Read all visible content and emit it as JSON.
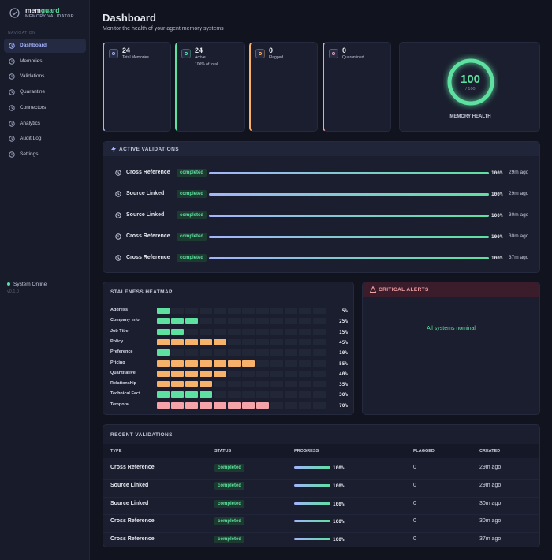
{
  "sidebar": {
    "brand_prefix": "mem",
    "brand_suffix": "guard",
    "brand_subtitle": "MEMORY VALIDATOR",
    "nav_heading": "NAVIGATION",
    "nav": [
      "Dashboard",
      "Memories",
      "Validations",
      "Quarantine",
      "Connectors",
      "Analytics",
      "Audit Log",
      "Settings"
    ],
    "status": "System Online",
    "version": "v0.1.0"
  },
  "header": {
    "title": "Dashboard",
    "subtitle": "Monitor the health of your agent memory systems"
  },
  "stats": [
    {
      "value": 24,
      "label": "Total Memories",
      "color": "#a5b4fc"
    },
    {
      "value": 24,
      "label": "Active",
      "note": "100% of total",
      "color": "#5ee0a0"
    },
    {
      "value": 0,
      "label": "Flagged",
      "color": "#f6b26b"
    },
    {
      "value": 0,
      "label": "Quarantined",
      "color": "#f4a3a8"
    }
  ],
  "health": {
    "value": 100,
    "max": 100,
    "max_label": "/ 100",
    "label": "MEMORY HEALTH"
  },
  "active_validations": {
    "title": "ACTIVE VALIDATIONS",
    "items": [
      {
        "type": "Cross Reference",
        "status": "completed",
        "progress": 100,
        "progress_label": "100%",
        "time": "29m ago"
      },
      {
        "type": "Source Linked",
        "status": "completed",
        "progress": 100,
        "progress_label": "100%",
        "time": "29m ago"
      },
      {
        "type": "Source Linked",
        "status": "completed",
        "progress": 100,
        "progress_label": "100%",
        "time": "30m ago"
      },
      {
        "type": "Cross Reference",
        "status": "completed",
        "progress": 100,
        "progress_label": "100%",
        "time": "30m ago"
      },
      {
        "type": "Cross Reference",
        "status": "completed",
        "progress": 100,
        "progress_label": "100%",
        "time": "37m ago"
      }
    ]
  },
  "staleness": {
    "title": "STALENESS HEATMAP",
    "rows": [
      {
        "label": "Address",
        "value": 5,
        "value_label": "5%",
        "color": "#5ee0a0"
      },
      {
        "label": "Company Info",
        "value": 25,
        "value_label": "25%",
        "color": "#5ee0a0"
      },
      {
        "label": "Job Title",
        "value": 15,
        "value_label": "15%",
        "color": "#5ee0a0"
      },
      {
        "label": "Policy",
        "value": 45,
        "value_label": "45%",
        "color": "#f6b26b"
      },
      {
        "label": "Preference",
        "value": 10,
        "value_label": "10%",
        "color": "#5ee0a0"
      },
      {
        "label": "Pricing",
        "value": 55,
        "value_label": "55%",
        "color": "#f6b26b"
      },
      {
        "label": "Quantitative",
        "value": 40,
        "value_label": "40%",
        "color": "#f6b26b"
      },
      {
        "label": "Relationship",
        "value": 35,
        "value_label": "35%",
        "color": "#f6b26b"
      },
      {
        "label": "Technical Fact",
        "value": 30,
        "value_label": "30%",
        "color": "#5ee0a0"
      },
      {
        "label": "Temporal",
        "value": 70,
        "value_label": "70%",
        "color": "#f4a3a8"
      }
    ]
  },
  "alerts": {
    "title": "CRITICAL ALERTS",
    "message": "All systems nominal"
  },
  "recent": {
    "title": "RECENT VALIDATIONS",
    "columns": [
      "TYPE",
      "STATUS",
      "PROGRESS",
      "FLAGGED",
      "CREATED"
    ],
    "rows": [
      {
        "type": "Cross Reference",
        "status": "completed",
        "progress": 100,
        "progress_label": "100%",
        "flagged": 0,
        "created": "29m ago"
      },
      {
        "type": "Source Linked",
        "status": "completed",
        "progress": 100,
        "progress_label": "100%",
        "flagged": 0,
        "created": "29m ago"
      },
      {
        "type": "Source Linked",
        "status": "completed",
        "progress": 100,
        "progress_label": "100%",
        "flagged": 0,
        "created": "30m ago"
      },
      {
        "type": "Cross Reference",
        "status": "completed",
        "progress": 100,
        "progress_label": "100%",
        "flagged": 0,
        "created": "30m ago"
      },
      {
        "type": "Cross Reference",
        "status": "completed",
        "progress": 100,
        "progress_label": "100%",
        "flagged": 0,
        "created": "37m ago"
      }
    ]
  }
}
